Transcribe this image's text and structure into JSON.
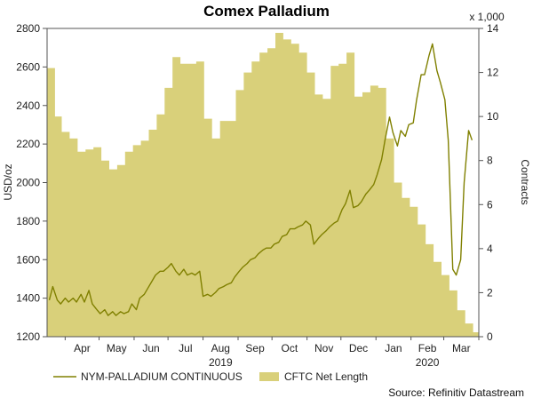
{
  "chart_data": {
    "type": "area+line",
    "title": "Comex Palladium",
    "source": "Source: Refinitiv Datastream",
    "left_axis": {
      "label": "USD/oz",
      "range": [
        1200,
        2800
      ],
      "ticks": [
        "1200",
        "1400",
        "1600",
        "1800",
        "2000",
        "2200",
        "2400",
        "2600",
        "2800"
      ]
    },
    "right_axis": {
      "label": "Contracts",
      "multiplier": "x 1,000",
      "range": [
        0,
        14
      ],
      "ticks": [
        "0",
        "2",
        "4",
        "6",
        "8",
        "10",
        "12",
        "14"
      ]
    },
    "x_axis": {
      "months": [
        "Apr",
        "May",
        "Jun",
        "Jul",
        "Aug",
        "Sep",
        "Oct",
        "Nov",
        "Dec",
        "Jan",
        "Feb",
        "Mar"
      ],
      "years": [
        {
          "label": "2019",
          "under": "Aug"
        },
        {
          "label": "2020",
          "under": "Feb"
        }
      ]
    },
    "series": [
      {
        "name": "NYM-PALLADIUM CONTINUOUS",
        "kind": "line",
        "axis": "left",
        "color": "#808000",
        "points": [
          {
            "date": "2019-03-18",
            "value": 1390
          },
          {
            "date": "2019-03-21",
            "value": 1460
          },
          {
            "date": "2019-03-25",
            "value": 1390
          },
          {
            "date": "2019-03-28",
            "value": 1370
          },
          {
            "date": "2019-04-01",
            "value": 1400
          },
          {
            "date": "2019-04-04",
            "value": 1380
          },
          {
            "date": "2019-04-08",
            "value": 1400
          },
          {
            "date": "2019-04-11",
            "value": 1380
          },
          {
            "date": "2019-04-15",
            "value": 1420
          },
          {
            "date": "2019-04-18",
            "value": 1380
          },
          {
            "date": "2019-04-22",
            "value": 1440
          },
          {
            "date": "2019-04-25",
            "value": 1370
          },
          {
            "date": "2019-04-29",
            "value": 1340
          },
          {
            "date": "2019-05-02",
            "value": 1320
          },
          {
            "date": "2019-05-06",
            "value": 1340
          },
          {
            "date": "2019-05-09",
            "value": 1310
          },
          {
            "date": "2019-05-13",
            "value": 1330
          },
          {
            "date": "2019-05-16",
            "value": 1310
          },
          {
            "date": "2019-05-20",
            "value": 1330
          },
          {
            "date": "2019-05-23",
            "value": 1320
          },
          {
            "date": "2019-05-27",
            "value": 1330
          },
          {
            "date": "2019-05-30",
            "value": 1370
          },
          {
            "date": "2019-06-03",
            "value": 1340
          },
          {
            "date": "2019-06-06",
            "value": 1400
          },
          {
            "date": "2019-06-10",
            "value": 1420
          },
          {
            "date": "2019-06-13",
            "value": 1450
          },
          {
            "date": "2019-06-17",
            "value": 1490
          },
          {
            "date": "2019-06-20",
            "value": 1520
          },
          {
            "date": "2019-06-24",
            "value": 1540
          },
          {
            "date": "2019-06-27",
            "value": 1540
          },
          {
            "date": "2019-07-01",
            "value": 1560
          },
          {
            "date": "2019-07-04",
            "value": 1580
          },
          {
            "date": "2019-07-08",
            "value": 1540
          },
          {
            "date": "2019-07-11",
            "value": 1520
          },
          {
            "date": "2019-07-15",
            "value": 1550
          },
          {
            "date": "2019-07-18",
            "value": 1520
          },
          {
            "date": "2019-07-22",
            "value": 1530
          },
          {
            "date": "2019-07-25",
            "value": 1520
          },
          {
            "date": "2019-07-29",
            "value": 1540
          },
          {
            "date": "2019-08-01",
            "value": 1410
          },
          {
            "date": "2019-08-05",
            "value": 1420
          },
          {
            "date": "2019-08-08",
            "value": 1410
          },
          {
            "date": "2019-08-12",
            "value": 1430
          },
          {
            "date": "2019-08-15",
            "value": 1450
          },
          {
            "date": "2019-08-19",
            "value": 1460
          },
          {
            "date": "2019-08-22",
            "value": 1470
          },
          {
            "date": "2019-08-26",
            "value": 1480
          },
          {
            "date": "2019-08-29",
            "value": 1510
          },
          {
            "date": "2019-09-02",
            "value": 1540
          },
          {
            "date": "2019-09-05",
            "value": 1560
          },
          {
            "date": "2019-09-09",
            "value": 1580
          },
          {
            "date": "2019-09-12",
            "value": 1600
          },
          {
            "date": "2019-09-16",
            "value": 1610
          },
          {
            "date": "2019-09-19",
            "value": 1630
          },
          {
            "date": "2019-09-23",
            "value": 1650
          },
          {
            "date": "2019-09-26",
            "value": 1660
          },
          {
            "date": "2019-09-30",
            "value": 1660
          },
          {
            "date": "2019-10-03",
            "value": 1680
          },
          {
            "date": "2019-10-07",
            "value": 1690
          },
          {
            "date": "2019-10-10",
            "value": 1720
          },
          {
            "date": "2019-10-14",
            "value": 1730
          },
          {
            "date": "2019-10-17",
            "value": 1760
          },
          {
            "date": "2019-10-21",
            "value": 1760
          },
          {
            "date": "2019-10-24",
            "value": 1770
          },
          {
            "date": "2019-10-28",
            "value": 1780
          },
          {
            "date": "2019-10-31",
            "value": 1800
          },
          {
            "date": "2019-11-04",
            "value": 1780
          },
          {
            "date": "2019-11-07",
            "value": 1680
          },
          {
            "date": "2019-11-11",
            "value": 1710
          },
          {
            "date": "2019-11-14",
            "value": 1730
          },
          {
            "date": "2019-11-18",
            "value": 1750
          },
          {
            "date": "2019-11-21",
            "value": 1770
          },
          {
            "date": "2019-11-25",
            "value": 1790
          },
          {
            "date": "2019-11-28",
            "value": 1800
          },
          {
            "date": "2019-12-02",
            "value": 1860
          },
          {
            "date": "2019-12-05",
            "value": 1890
          },
          {
            "date": "2019-12-09",
            "value": 1960
          },
          {
            "date": "2019-12-12",
            "value": 1870
          },
          {
            "date": "2019-12-16",
            "value": 1880
          },
          {
            "date": "2019-12-19",
            "value": 1900
          },
          {
            "date": "2019-12-23",
            "value": 1940
          },
          {
            "date": "2019-12-26",
            "value": 1960
          },
          {
            "date": "2019-12-30",
            "value": 1990
          },
          {
            "date": "2020-01-02",
            "value": 2040
          },
          {
            "date": "2020-01-06",
            "value": 2120
          },
          {
            "date": "2020-01-09",
            "value": 2220
          },
          {
            "date": "2020-01-13",
            "value": 2340
          },
          {
            "date": "2020-01-16",
            "value": 2260
          },
          {
            "date": "2020-01-20",
            "value": 2190
          },
          {
            "date": "2020-01-23",
            "value": 2270
          },
          {
            "date": "2020-01-27",
            "value": 2240
          },
          {
            "date": "2020-01-30",
            "value": 2300
          },
          {
            "date": "2020-02-03",
            "value": 2310
          },
          {
            "date": "2020-02-06",
            "value": 2430
          },
          {
            "date": "2020-02-10",
            "value": 2560
          },
          {
            "date": "2020-02-13",
            "value": 2560
          },
          {
            "date": "2020-02-17",
            "value": 2660
          },
          {
            "date": "2020-02-20",
            "value": 2720
          },
          {
            "date": "2020-02-24",
            "value": 2580
          },
          {
            "date": "2020-02-27",
            "value": 2520
          },
          {
            "date": "2020-03-02",
            "value": 2430
          },
          {
            "date": "2020-03-05",
            "value": 2220
          },
          {
            "date": "2020-03-09",
            "value": 1550
          },
          {
            "date": "2020-03-12",
            "value": 1520
          },
          {
            "date": "2020-03-16",
            "value": 1600
          },
          {
            "date": "2020-03-19",
            "value": 2000
          },
          {
            "date": "2020-03-23",
            "value": 2270
          },
          {
            "date": "2020-03-26",
            "value": 2220
          }
        ]
      },
      {
        "name": "CFTC Net Length",
        "kind": "area",
        "axis": "right",
        "color": "#d9d07a",
        "points": [
          {
            "date": "2019-03-17",
            "value": 12.2
          },
          {
            "date": "2019-03-23",
            "value": 10.0
          },
          {
            "date": "2019-03-29",
            "value": 9.3
          },
          {
            "date": "2019-04-05",
            "value": 9.0
          },
          {
            "date": "2019-04-12",
            "value": 8.4
          },
          {
            "date": "2019-04-19",
            "value": 8.5
          },
          {
            "date": "2019-04-26",
            "value": 8.6
          },
          {
            "date": "2019-05-03",
            "value": 8.0
          },
          {
            "date": "2019-05-10",
            "value": 7.6
          },
          {
            "date": "2019-05-17",
            "value": 7.8
          },
          {
            "date": "2019-05-24",
            "value": 8.4
          },
          {
            "date": "2019-05-31",
            "value": 8.7
          },
          {
            "date": "2019-06-07",
            "value": 8.9
          },
          {
            "date": "2019-06-14",
            "value": 9.4
          },
          {
            "date": "2019-06-21",
            "value": 10.1
          },
          {
            "date": "2019-06-28",
            "value": 11.3
          },
          {
            "date": "2019-07-05",
            "value": 12.7
          },
          {
            "date": "2019-07-12",
            "value": 12.4
          },
          {
            "date": "2019-07-19",
            "value": 12.4
          },
          {
            "date": "2019-07-26",
            "value": 12.5
          },
          {
            "date": "2019-08-02",
            "value": 9.9
          },
          {
            "date": "2019-08-09",
            "value": 9.0
          },
          {
            "date": "2019-08-16",
            "value": 9.8
          },
          {
            "date": "2019-08-23",
            "value": 9.8
          },
          {
            "date": "2019-08-30",
            "value": 11.2
          },
          {
            "date": "2019-09-06",
            "value": 12.0
          },
          {
            "date": "2019-09-13",
            "value": 12.5
          },
          {
            "date": "2019-09-20",
            "value": 12.9
          },
          {
            "date": "2019-09-27",
            "value": 13.1
          },
          {
            "date": "2019-10-04",
            "value": 13.8
          },
          {
            "date": "2019-10-11",
            "value": 13.5
          },
          {
            "date": "2019-10-18",
            "value": 13.3
          },
          {
            "date": "2019-10-25",
            "value": 12.9
          },
          {
            "date": "2019-11-01",
            "value": 12.0
          },
          {
            "date": "2019-11-08",
            "value": 11.0
          },
          {
            "date": "2019-11-15",
            "value": 10.8
          },
          {
            "date": "2019-11-22",
            "value": 12.3
          },
          {
            "date": "2019-11-29",
            "value": 12.4
          },
          {
            "date": "2019-12-06",
            "value": 12.9
          },
          {
            "date": "2019-12-13",
            "value": 10.9
          },
          {
            "date": "2019-12-20",
            "value": 11.1
          },
          {
            "date": "2019-12-27",
            "value": 11.4
          },
          {
            "date": "2020-01-03",
            "value": 11.3
          },
          {
            "date": "2020-01-10",
            "value": 9.0
          },
          {
            "date": "2020-01-17",
            "value": 7.0
          },
          {
            "date": "2020-01-24",
            "value": 6.3
          },
          {
            "date": "2020-01-31",
            "value": 5.9
          },
          {
            "date": "2020-02-07",
            "value": 5.1
          },
          {
            "date": "2020-02-14",
            "value": 4.2
          },
          {
            "date": "2020-02-21",
            "value": 3.4
          },
          {
            "date": "2020-02-28",
            "value": 2.8
          },
          {
            "date": "2020-03-06",
            "value": 2.1
          },
          {
            "date": "2020-03-13",
            "value": 1.2
          },
          {
            "date": "2020-03-20",
            "value": 0.6
          },
          {
            "date": "2020-03-27",
            "value": 0.2
          }
        ]
      }
    ],
    "grid": false,
    "legend_position": "bottom",
    "background_color": "#ffffff"
  }
}
